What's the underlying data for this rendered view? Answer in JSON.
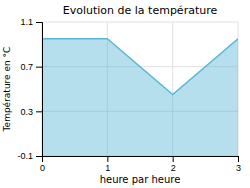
{
  "chart_data": {
    "type": "area",
    "title": "Evolution de la température",
    "xlabel": "heure par heure",
    "ylabel": "Température en °C",
    "x": [
      0,
      1,
      2,
      3
    ],
    "values": [
      0.95,
      0.95,
      0.45,
      0.95
    ],
    "color": "#5ab8d4",
    "xlim": [
      0,
      3
    ],
    "ylim": [
      -0.1,
      1.1
    ],
    "xticks": [
      0,
      1,
      2,
      3
    ],
    "yticks": [
      -0.1,
      0.3,
      0.7,
      1.1
    ],
    "grid": true
  }
}
